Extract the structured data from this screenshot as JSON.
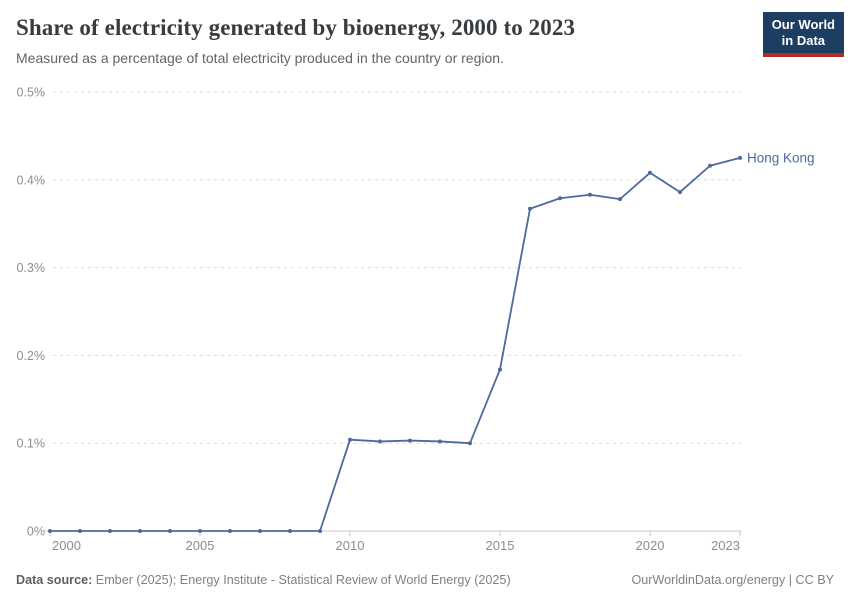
{
  "header": {
    "title": "Share of electricity generated by bioenergy, 2000 to 2023",
    "subtitle": "Measured as a percentage of total electricity produced in the country or region."
  },
  "logo": {
    "line1": "Our World",
    "line2": "in Data",
    "bg_color": "#1d3d63",
    "accent_color": "#b22c26"
  },
  "chart_data": {
    "type": "line",
    "title": "Share of electricity generated by bioenergy, 2000 to 2023",
    "xlabel": "",
    "ylabel": "",
    "unit": "%",
    "x": [
      2000,
      2001,
      2002,
      2003,
      2004,
      2005,
      2006,
      2007,
      2008,
      2009,
      2010,
      2011,
      2012,
      2013,
      2014,
      2015,
      2016,
      2017,
      2018,
      2019,
      2020,
      2021,
      2022,
      2023
    ],
    "series": [
      {
        "name": "Hong Kong",
        "color": "#4c6a9c",
        "values": [
          0,
          0,
          0,
          0,
          0,
          0,
          0,
          0,
          0,
          0,
          0.104,
          0.102,
          0.103,
          0.102,
          0.1,
          0.184,
          0.367,
          0.379,
          0.383,
          0.378,
          0.408,
          0.386,
          0.416,
          0.425
        ]
      }
    ],
    "ylim": [
      0,
      0.5
    ],
    "y_ticks": [
      {
        "value": 0,
        "label": "0%"
      },
      {
        "value": 0.1,
        "label": "0.1%"
      },
      {
        "value": 0.2,
        "label": "0.2%"
      },
      {
        "value": 0.3,
        "label": "0.3%"
      },
      {
        "value": 0.4,
        "label": "0.4%"
      },
      {
        "value": 0.5,
        "label": "0.5%"
      }
    ],
    "x_tick_years": [
      2000,
      2005,
      2010,
      2015,
      2020,
      2023
    ],
    "grid": "horizontal-dashed",
    "legend_position": "line-end-label"
  },
  "footer": {
    "source_label": "Data source:",
    "source_text": " Ember (2025); Energy Institute - Statistical Review of World Energy (2025)",
    "credit": "OurWorldinData.org/energy | CC BY"
  },
  "colors": {
    "line": "#4c6a9c",
    "axis": "#c9c9c9",
    "grid": "#dcdcdc",
    "tick_text": "#8d8d8d"
  }
}
